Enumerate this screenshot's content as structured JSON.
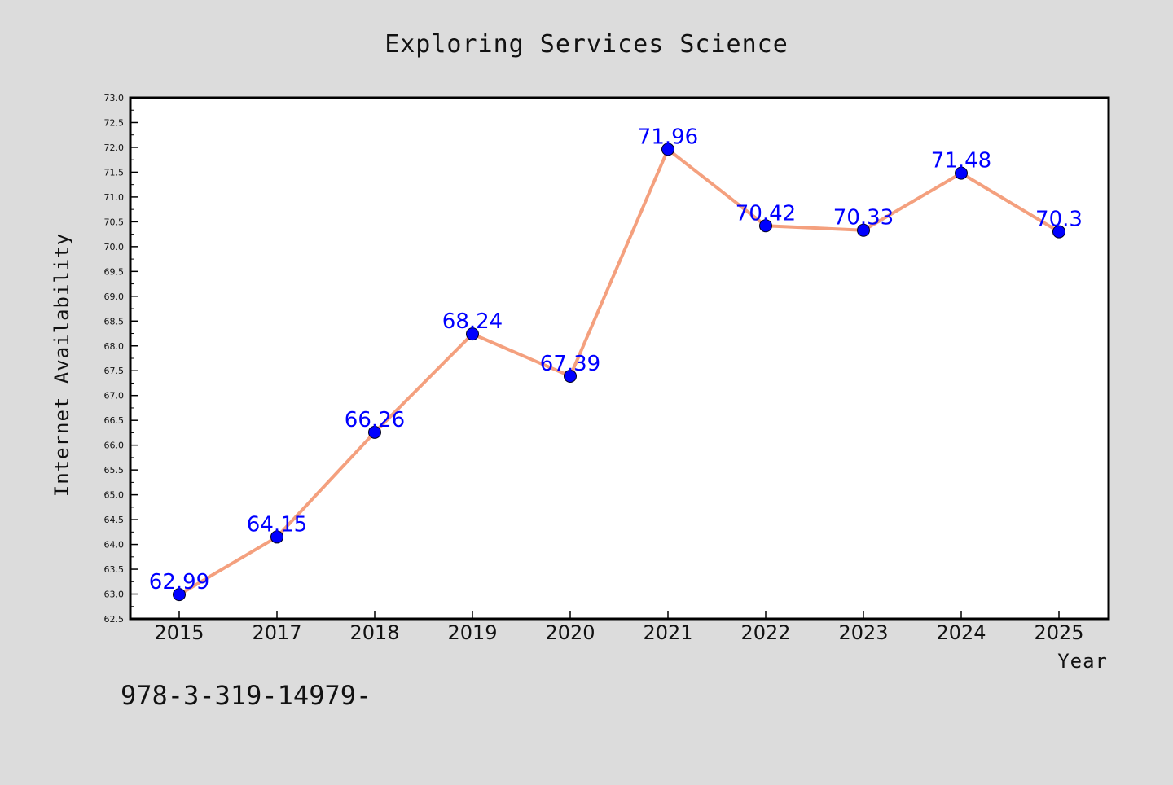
{
  "chart_data": {
    "type": "line",
    "title": "Exploring Services Science",
    "xlabel": "Year",
    "ylabel": "Internet Availability",
    "categories": [
      "2015",
      "2017",
      "2018",
      "2019",
      "2020",
      "2021",
      "2022",
      "2023",
      "2024",
      "2025"
    ],
    "series": [
      {
        "values": [
          62.99,
          64.15,
          66.26,
          68.24,
          67.39,
          71.96,
          70.42,
          70.33,
          71.48,
          70.3
        ],
        "labels": [
          "62.99",
          "64.15",
          "66.26",
          "68.24",
          "67.39",
          "71.96",
          "70.42",
          "70.33",
          "71.48",
          "70.3"
        ],
        "line_color": "#f4a07e",
        "marker_color": "#0000ff"
      }
    ],
    "ylim": [
      62.5,
      73.0
    ],
    "y_ticks": [
      "62.5",
      "63.0",
      "63.5",
      "64.0",
      "64.5",
      "65.0",
      "65.5",
      "66.0",
      "66.5",
      "67.0",
      "67.5",
      "68.0",
      "68.5",
      "69.0",
      "69.5",
      "70.0",
      "70.5",
      "71.0",
      "71.5",
      "72.0",
      "72.5",
      "73.0"
    ],
    "grid": false,
    "legend": "none",
    "footnote": "978-3-319-14979-"
  },
  "colors": {
    "background": "#dcdcdc",
    "plot_background": "#ffffff",
    "line": "#f4a07e",
    "marker": "#0000ff",
    "data_label": "#0000ff"
  }
}
